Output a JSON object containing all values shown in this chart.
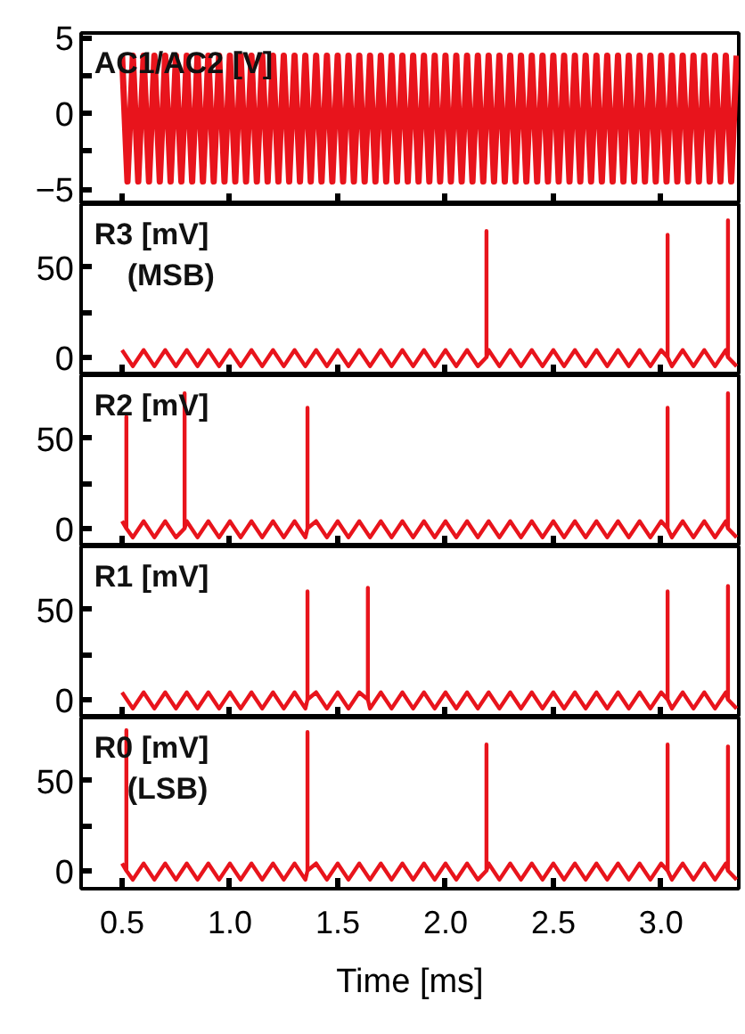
{
  "chart_data": [
    {
      "type": "line",
      "ylabel": "AC1/AC2 [V]",
      "xlim": [
        0.31,
        3.36
      ],
      "ylim": [
        -6,
        5.3
      ],
      "xticks": [
        0.5,
        1.0,
        1.5,
        2.0,
        2.5,
        3.0
      ],
      "yticks": [
        -5,
        {
          "value": -2.5,
          "label": null
        },
        0,
        {
          "value": 2.5,
          "label": null
        },
        5
      ],
      "tick_labels": "y",
      "grid": false,
      "series": [
        {
          "color": "#e8141c",
          "x": [
            0.5,
            0.525,
            0.55,
            0.575,
            0.6,
            0.625,
            0.65,
            0.675,
            0.7,
            0.725,
            0.75,
            0.775,
            0.8,
            0.825,
            0.85,
            0.875,
            0.9,
            0.925,
            0.95,
            0.975,
            1.0,
            1.025,
            1.05,
            1.075,
            1.1,
            1.125,
            1.15,
            1.175,
            1.2,
            1.225,
            1.25,
            1.275,
            1.3,
            1.325,
            1.35,
            1.375,
            1.4,
            1.425,
            1.45,
            1.475,
            1.5,
            1.525,
            1.55,
            1.575,
            1.6,
            1.625,
            1.65,
            1.675,
            1.7,
            1.725,
            1.75,
            1.775,
            1.8,
            1.825,
            1.85,
            1.875,
            1.9,
            1.925,
            1.95,
            1.975,
            2.0,
            2.025,
            2.05,
            2.075,
            2.1,
            2.125,
            2.15,
            2.175,
            2.2,
            2.225,
            2.25,
            2.275,
            2.3,
            2.325,
            2.35,
            2.375,
            2.4,
            2.425,
            2.45,
            2.475,
            2.5,
            2.525,
            2.55,
            2.575,
            2.6,
            2.625,
            2.65,
            2.675,
            2.7,
            2.725,
            2.75,
            2.775,
            2.8,
            2.825,
            2.85,
            2.875,
            2.9,
            2.925,
            2.95,
            2.975,
            3.0,
            3.025,
            3.05,
            3.075,
            3.1,
            3.125,
            3.15,
            3.175,
            3.2,
            3.225,
            3.25,
            3.275,
            3.3,
            3.325,
            3.35
          ],
          "values": [
            3.8,
            -4.5,
            3.8,
            -4.5,
            3.8,
            -4.5,
            3.8,
            -4.5,
            3.8,
            -4.5,
            3.8,
            -4.5,
            3.8,
            -4.5,
            3.8,
            -4.5,
            3.8,
            -4.5,
            3.8,
            -4.5,
            3.8,
            -4.5,
            3.8,
            -4.5,
            3.8,
            -4.5,
            3.8,
            -4.5,
            3.8,
            -4.5,
            3.8,
            -4.5,
            3.8,
            -4.5,
            3.8,
            -4.5,
            3.8,
            -4.5,
            3.8,
            -4.5,
            3.8,
            -4.5,
            3.8,
            -4.5,
            3.8,
            -4.5,
            3.8,
            -4.5,
            3.8,
            -4.5,
            3.8,
            -4.5,
            3.8,
            -4.5,
            3.8,
            -4.5,
            3.8,
            -4.5,
            3.8,
            -4.5,
            3.8,
            -4.5,
            3.8,
            -4.5,
            3.8,
            -4.5,
            3.8,
            -4.5,
            3.8,
            -4.5,
            3.8,
            -4.5,
            3.8,
            -4.5,
            3.8,
            -4.5,
            3.8,
            -4.5,
            3.8,
            -4.5,
            3.8,
            -4.5,
            3.8,
            -4.5,
            3.8,
            -4.5,
            3.8,
            -4.5,
            3.8,
            -4.5,
            3.8,
            -4.5,
            3.8,
            -4.5,
            3.8,
            -4.5,
            3.8,
            -4.5,
            3.8,
            -4.5,
            3.8,
            -4.5,
            3.8,
            -4.5,
            3.8,
            -4.5,
            3.8,
            -4.5,
            3.8,
            -4.5,
            3.8,
            -4.5,
            3.8,
            -4.5,
            3.8
          ]
        }
      ]
    },
    {
      "type": "line",
      "ylabel": "R3 [mV]\n(MSB)",
      "xlim": [
        0.31,
        3.36
      ],
      "ylim": [
        -10,
        85
      ],
      "xticks": [
        0.5,
        1.0,
        1.5,
        2.0,
        2.5,
        3.0
      ],
      "yticks": [
        0,
        {
          "value": 25,
          "label": null
        },
        50
      ],
      "tick_labels": "y",
      "grid": false,
      "series": [
        {
          "color": "#e8141c",
          "x": [
            0.5,
            0.55,
            0.6,
            0.65,
            0.7,
            0.75,
            0.8,
            0.85,
            0.9,
            0.95,
            1.0,
            1.05,
            1.1,
            1.15,
            1.2,
            1.25,
            1.3,
            1.35,
            1.4,
            1.45,
            1.5,
            1.55,
            1.6,
            1.65,
            1.7,
            1.75,
            1.8,
            1.85,
            1.9,
            1.95,
            2.0,
            2.05,
            2.1,
            2.15,
            2.19,
            2.19,
            2.19,
            2.2,
            2.25,
            2.3,
            2.35,
            2.4,
            2.45,
            2.5,
            2.55,
            2.6,
            2.65,
            2.7,
            2.75,
            2.8,
            2.85,
            2.9,
            2.95,
            3.0,
            3.03,
            3.03,
            3.03,
            3.05,
            3.1,
            3.15,
            3.2,
            3.25,
            3.3,
            3.31,
            3.31,
            3.31,
            3.35
          ],
          "values": [
            4,
            -5,
            4,
            -5,
            4,
            -5,
            4,
            -5,
            4,
            -5,
            4,
            -5,
            4,
            -5,
            4,
            -5,
            4,
            -5,
            4,
            -5,
            4,
            -5,
            4,
            -5,
            4,
            -5,
            4,
            -5,
            4,
            -5,
            4,
            -5,
            4,
            -5,
            0,
            70,
            0,
            4,
            -5,
            4,
            -5,
            4,
            -5,
            4,
            -5,
            4,
            -5,
            4,
            -5,
            4,
            -5,
            4,
            -5,
            4,
            0,
            68,
            0,
            -5,
            4,
            -5,
            4,
            -5,
            4,
            0,
            76,
            0,
            -5
          ]
        }
      ]
    },
    {
      "type": "line",
      "ylabel": "R2 [mV]",
      "xlim": [
        0.31,
        3.36
      ],
      "ylim": [
        -10,
        85
      ],
      "xticks": [
        0.5,
        1.0,
        1.5,
        2.0,
        2.5,
        3.0
      ],
      "yticks": [
        0,
        {
          "value": 25,
          "label": null
        },
        50
      ],
      "tick_labels": "y",
      "grid": false,
      "series": [
        {
          "color": "#e8141c",
          "x": [
            0.5,
            0.52,
            0.52,
            0.52,
            0.55,
            0.6,
            0.65,
            0.7,
            0.75,
            0.79,
            0.79,
            0.79,
            0.8,
            0.85,
            0.9,
            0.95,
            1.0,
            1.05,
            1.1,
            1.15,
            1.2,
            1.25,
            1.3,
            1.35,
            1.36,
            1.36,
            1.36,
            1.4,
            1.45,
            1.5,
            1.55,
            1.6,
            1.65,
            1.7,
            1.75,
            1.8,
            1.85,
            1.9,
            1.95,
            2.0,
            2.05,
            2.1,
            2.15,
            2.2,
            2.25,
            2.3,
            2.35,
            2.4,
            2.45,
            2.5,
            2.55,
            2.6,
            2.65,
            2.7,
            2.75,
            2.8,
            2.85,
            2.9,
            2.95,
            3.0,
            3.03,
            3.03,
            3.03,
            3.05,
            3.1,
            3.15,
            3.2,
            3.25,
            3.3,
            3.31,
            3.31,
            3.31,
            3.35
          ],
          "values": [
            4,
            0,
            62,
            0,
            -5,
            4,
            -5,
            4,
            -5,
            0,
            75,
            0,
            4,
            -5,
            4,
            -5,
            4,
            -5,
            4,
            -5,
            4,
            -5,
            4,
            -5,
            0,
            67,
            0,
            4,
            -5,
            4,
            -5,
            4,
            -5,
            4,
            -5,
            4,
            -5,
            4,
            -5,
            4,
            -5,
            4,
            -5,
            4,
            -5,
            4,
            -5,
            4,
            -5,
            4,
            -5,
            4,
            -5,
            4,
            -5,
            4,
            -5,
            4,
            -5,
            4,
            0,
            67,
            0,
            -5,
            4,
            -5,
            4,
            -5,
            4,
            0,
            75,
            0,
            -5
          ]
        }
      ]
    },
    {
      "type": "line",
      "ylabel": "R1 [mV]",
      "xlim": [
        0.31,
        3.36
      ],
      "ylim": [
        -10,
        85
      ],
      "xticks": [
        0.5,
        1.0,
        1.5,
        2.0,
        2.5,
        3.0
      ],
      "yticks": [
        0,
        {
          "value": 25,
          "label": null
        },
        50
      ],
      "tick_labels": "y",
      "grid": false,
      "series": [
        {
          "color": "#e8141c",
          "x": [
            0.5,
            0.55,
            0.6,
            0.65,
            0.7,
            0.75,
            0.8,
            0.85,
            0.9,
            0.95,
            1.0,
            1.05,
            1.1,
            1.15,
            1.2,
            1.25,
            1.3,
            1.35,
            1.36,
            1.36,
            1.36,
            1.4,
            1.45,
            1.5,
            1.55,
            1.6,
            1.64,
            1.64,
            1.64,
            1.65,
            1.7,
            1.75,
            1.8,
            1.85,
            1.9,
            1.95,
            2.0,
            2.05,
            2.1,
            2.15,
            2.2,
            2.25,
            2.3,
            2.35,
            2.4,
            2.45,
            2.5,
            2.55,
            2.6,
            2.65,
            2.7,
            2.75,
            2.8,
            2.85,
            2.9,
            2.95,
            3.0,
            3.03,
            3.03,
            3.03,
            3.05,
            3.1,
            3.15,
            3.2,
            3.25,
            3.3,
            3.31,
            3.31,
            3.31,
            3.35
          ],
          "values": [
            4,
            -5,
            4,
            -5,
            4,
            -5,
            4,
            -5,
            4,
            -5,
            4,
            -5,
            4,
            -5,
            4,
            -5,
            4,
            -5,
            0,
            60,
            0,
            4,
            -5,
            4,
            -5,
            4,
            0,
            62,
            0,
            -5,
            4,
            -5,
            4,
            -5,
            4,
            -5,
            4,
            -5,
            4,
            -5,
            4,
            -5,
            4,
            -5,
            4,
            -5,
            4,
            -5,
            4,
            -5,
            4,
            -5,
            4,
            -5,
            4,
            -5,
            4,
            0,
            60,
            0,
            -5,
            4,
            -5,
            4,
            -5,
            4,
            0,
            63,
            0,
            -5
          ]
        }
      ]
    },
    {
      "type": "line",
      "ylabel": "R0 [mV]\n(LSB)",
      "xlabel": "Time [ms]",
      "xlim": [
        0.31,
        3.36
      ],
      "ylim": [
        -10,
        85
      ],
      "xticks": [
        0.5,
        {
          "value": 1.0,
          "label": "1.0"
        },
        1.5,
        {
          "value": 2.0,
          "label": "2.0"
        },
        2.5,
        {
          "value": 3.0,
          "label": "3.0"
        }
      ],
      "yticks": [
        0,
        {
          "value": 25,
          "label": null
        },
        50
      ],
      "grid": false,
      "series": [
        {
          "color": "#e8141c",
          "x": [
            0.5,
            0.52,
            0.52,
            0.52,
            0.55,
            0.6,
            0.65,
            0.7,
            0.75,
            0.8,
            0.85,
            0.9,
            0.95,
            1.0,
            1.05,
            1.1,
            1.15,
            1.2,
            1.25,
            1.3,
            1.35,
            1.36,
            1.36,
            1.36,
            1.4,
            1.45,
            1.5,
            1.55,
            1.6,
            1.65,
            1.7,
            1.75,
            1.8,
            1.85,
            1.9,
            1.95,
            2.0,
            2.05,
            2.1,
            2.15,
            2.19,
            2.19,
            2.19,
            2.2,
            2.25,
            2.3,
            2.35,
            2.4,
            2.45,
            2.5,
            2.55,
            2.6,
            2.65,
            2.7,
            2.75,
            2.8,
            2.85,
            2.9,
            2.95,
            3.0,
            3.03,
            3.03,
            3.03,
            3.05,
            3.1,
            3.15,
            3.2,
            3.25,
            3.3,
            3.31,
            3.31,
            3.31,
            3.35
          ],
          "values": [
            4,
            0,
            78,
            0,
            -5,
            4,
            -5,
            4,
            -5,
            4,
            -5,
            4,
            -5,
            4,
            -5,
            4,
            -5,
            4,
            -5,
            4,
            -5,
            0,
            77,
            0,
            4,
            -5,
            4,
            -5,
            4,
            -5,
            4,
            -5,
            4,
            -5,
            4,
            -5,
            4,
            -5,
            4,
            -5,
            0,
            70,
            0,
            4,
            -5,
            4,
            -5,
            4,
            -5,
            4,
            -5,
            4,
            -5,
            4,
            -5,
            4,
            -5,
            4,
            -5,
            4,
            0,
            70,
            0,
            -5,
            4,
            -5,
            4,
            -5,
            4,
            0,
            69,
            0,
            -5
          ]
        }
      ]
    }
  ]
}
